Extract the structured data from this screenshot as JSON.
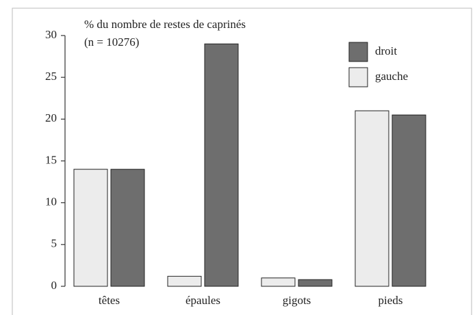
{
  "chart_data": {
    "type": "bar",
    "annotations": [
      "% du nombre de restes de caprinés",
      "(n = 10276)"
    ],
    "categories": [
      "têtes",
      "épaules",
      "gigots",
      "pieds"
    ],
    "series": [
      {
        "name": "gauche",
        "color": "#ececec",
        "values": [
          14,
          1.2,
          1,
          21
        ]
      },
      {
        "name": "droit",
        "color": "#6e6e6e",
        "values": [
          14,
          29,
          0.8,
          20.5
        ]
      }
    ],
    "ylim": [
      0,
      30
    ],
    "yticks": [
      0,
      5,
      10,
      15,
      20,
      25,
      30
    ],
    "grid": false
  }
}
